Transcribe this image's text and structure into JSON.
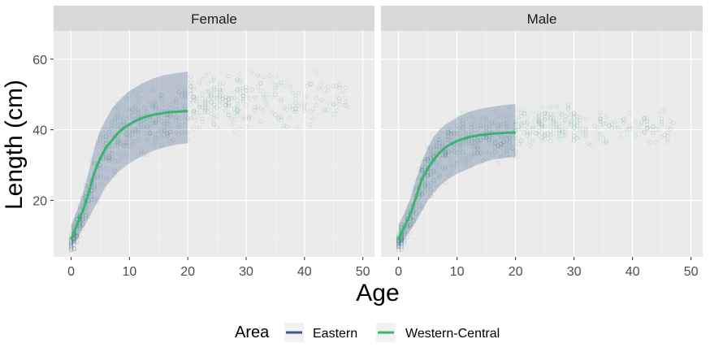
{
  "chart_data": {
    "type": "scatter",
    "xlabel": "Age",
    "ylabel": "Length (cm)",
    "xlim": [
      -3,
      52
    ],
    "ylim": [
      4,
      68
    ],
    "x_ticks": [
      0,
      10,
      20,
      30,
      40,
      50
    ],
    "y_ticks": [
      20,
      40,
      60
    ],
    "grid": true,
    "legend": {
      "title": "Area",
      "placement": "bottom",
      "entries": [
        {
          "name": "Eastern",
          "color": "#3b5a8a"
        },
        {
          "name": "Western-Central",
          "color": "#3cb371"
        }
      ]
    },
    "panels": [
      {
        "strip": "Female",
        "fit_western_central": {
          "x": [
            0,
            1,
            2,
            3,
            4,
            5,
            6,
            7,
            8,
            9,
            10,
            11,
            12,
            13,
            14,
            15,
            16,
            17,
            18,
            19,
            20
          ],
          "y": [
            9,
            13,
            17,
            22,
            28,
            32,
            35,
            37,
            39,
            40.5,
            41.5,
            42.5,
            43.2,
            43.8,
            44.2,
            44.5,
            44.8,
            45.0,
            45.1,
            45.2,
            45.3
          ]
        },
        "band_eastern": {
          "x": [
            0,
            1,
            2,
            3,
            4,
            5,
            6,
            7,
            8,
            10,
            12,
            14,
            16,
            18,
            20
          ],
          "lower": [
            7,
            9,
            12,
            15,
            18,
            21,
            24,
            26,
            28,
            30.5,
            32.5,
            34,
            35,
            35.8,
            36.2
          ],
          "upper": [
            13,
            17,
            22,
            28,
            35,
            40,
            43,
            46,
            48,
            51,
            53,
            54.5,
            55.5,
            56,
            56.5
          ]
        },
        "points": {
          "x_max": 48,
          "upper_cap": 63
        }
      },
      {
        "strip": "Male",
        "fit_western_central": {
          "x": [
            0,
            1,
            2,
            3,
            4,
            5,
            6,
            7,
            8,
            9,
            10,
            11,
            12,
            13,
            14,
            15,
            16,
            17,
            18,
            19,
            20
          ],
          "y": [
            9,
            12.5,
            16,
            21,
            26,
            29,
            31.5,
            33.5,
            35,
            36,
            36.8,
            37.4,
            37.9,
            38.2,
            38.5,
            38.7,
            38.9,
            39.0,
            39.1,
            39.2,
            39.2
          ]
        },
        "band_eastern": {
          "x": [
            0,
            1,
            2,
            3,
            4,
            5,
            6,
            7,
            8,
            10,
            12,
            14,
            16,
            18,
            20
          ],
          "lower": [
            7,
            9,
            11.5,
            14,
            17,
            20,
            22,
            24,
            25.5,
            27.5,
            29,
            30.5,
            31.5,
            32,
            32.3
          ],
          "upper": [
            13,
            16.5,
            20.5,
            26,
            31,
            35,
            38,
            40,
            41.5,
            43.5,
            45,
            46,
            46.5,
            47,
            47.3
          ]
        },
        "points": {
          "x_max": 47,
          "upper_cap": 50
        }
      }
    ]
  }
}
